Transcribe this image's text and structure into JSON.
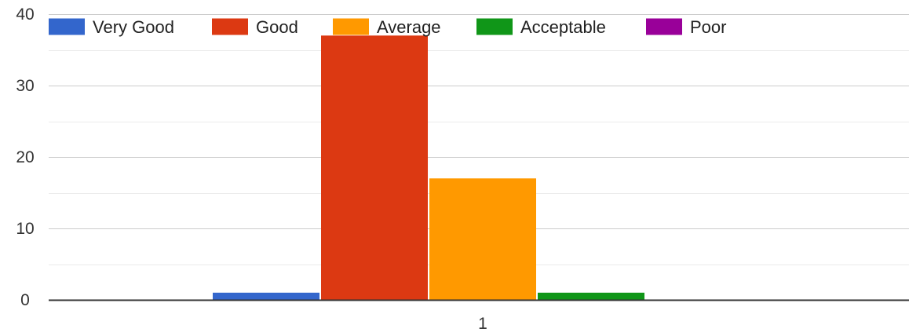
{
  "chart_data": {
    "type": "bar",
    "categories": [
      "1"
    ],
    "series": [
      {
        "name": "Very Good",
        "color": "#3366CC",
        "values": [
          1
        ]
      },
      {
        "name": "Good",
        "color": "#DC3912",
        "values": [
          37
        ]
      },
      {
        "name": "Average",
        "color": "#FF9900",
        "values": [
          17
        ]
      },
      {
        "name": "Acceptable",
        "color": "#109618",
        "values": [
          1
        ]
      },
      {
        "name": "Poor",
        "color": "#990099",
        "values": [
          0
        ]
      }
    ],
    "yticks": [
      0,
      10,
      20,
      30,
      40
    ],
    "ylim": [
      0,
      40
    ],
    "grid": true,
    "legend": "top"
  }
}
